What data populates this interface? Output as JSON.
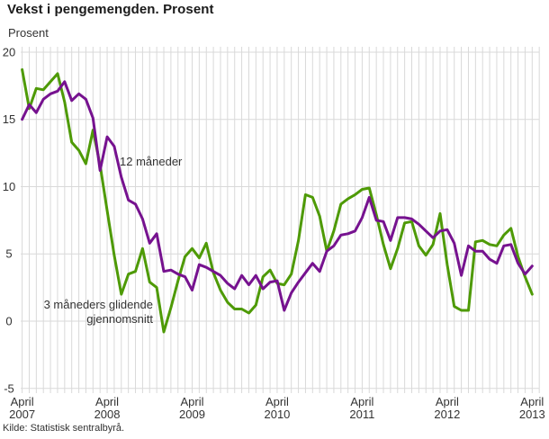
{
  "chart_data": {
    "type": "line",
    "title": "Vekst i pengemengden. Prosent",
    "ylabel": "Prosent",
    "source": "Kilde: Statistisk sentralbyrå.",
    "ylim": [
      -5,
      20
    ],
    "yticks": [
      20,
      15,
      10,
      5,
      0,
      -5
    ],
    "grid": true,
    "grid_color": "#d9d9d9",
    "x_ticks": [
      {
        "index": 0,
        "line1": "April",
        "line2": "2007"
      },
      {
        "index": 12,
        "line1": "April",
        "line2": "2008"
      },
      {
        "index": 24,
        "line1": "April",
        "line2": "2009"
      },
      {
        "index": 36,
        "line1": "April",
        "line2": "2010"
      },
      {
        "index": 48,
        "line1": "April",
        "line2": "2011"
      },
      {
        "index": 60,
        "line1": "April",
        "line2": "2012"
      },
      {
        "index": 72,
        "line1": "April",
        "line2": "2013"
      }
    ],
    "x": [
      "2007-04",
      "2007-05",
      "2007-06",
      "2007-07",
      "2007-08",
      "2007-09",
      "2007-10",
      "2007-11",
      "2007-12",
      "2008-01",
      "2008-02",
      "2008-03",
      "2008-04",
      "2008-05",
      "2008-06",
      "2008-07",
      "2008-08",
      "2008-09",
      "2008-10",
      "2008-11",
      "2008-12",
      "2009-01",
      "2009-02",
      "2009-03",
      "2009-04",
      "2009-05",
      "2009-06",
      "2009-07",
      "2009-08",
      "2009-09",
      "2009-10",
      "2009-11",
      "2009-12",
      "2010-01",
      "2010-02",
      "2010-03",
      "2010-04",
      "2010-05",
      "2010-06",
      "2010-07",
      "2010-08",
      "2010-09",
      "2010-10",
      "2010-11",
      "2010-12",
      "2011-01",
      "2011-02",
      "2011-03",
      "2011-04",
      "2011-05",
      "2011-06",
      "2011-07",
      "2011-08",
      "2011-09",
      "2011-10",
      "2011-11",
      "2011-12",
      "2012-01",
      "2012-02",
      "2012-03",
      "2012-04",
      "2012-05",
      "2012-06",
      "2012-07",
      "2012-08",
      "2012-09",
      "2012-10",
      "2012-11",
      "2012-12",
      "2013-01",
      "2013-02",
      "2013-03",
      "2013-04"
    ],
    "series": [
      {
        "name": "3 måneders glidende gjennomsnitt",
        "color": "#4E9A06",
        "values": [
          18.7,
          15.8,
          17.3,
          17.2,
          17.8,
          18.4,
          16.3,
          13.3,
          12.7,
          11.7,
          14.2,
          11.6,
          8.2,
          4.9,
          2.0,
          3.5,
          3.7,
          5.4,
          2.9,
          2.5,
          -0.8,
          1.0,
          3.0,
          4.8,
          5.4,
          4.7,
          5.8,
          3.6,
          2.3,
          1.4,
          0.9,
          0.9,
          0.6,
          1.2,
          3.3,
          3.8,
          2.8,
          2.7,
          3.5,
          6.0,
          9.4,
          9.2,
          7.8,
          5.2,
          6.7,
          8.7,
          9.1,
          9.4,
          9.8,
          9.9,
          7.9,
          5.7,
          3.9,
          5.4,
          7.3,
          7.4,
          5.6,
          4.9,
          5.7,
          8.0,
          4.2,
          1.1,
          0.8,
          0.8,
          5.9,
          6.0,
          5.7,
          5.6,
          6.4,
          6.9,
          4.8,
          3.3,
          2.0
        ]
      },
      {
        "name": "12 måneder",
        "color": "#76128F",
        "values": [
          15.0,
          16.1,
          15.5,
          16.5,
          16.9,
          17.1,
          17.8,
          16.4,
          16.9,
          16.5,
          15.1,
          11.2,
          13.7,
          13.0,
          10.7,
          9.0,
          8.7,
          7.6,
          5.8,
          6.5,
          3.7,
          3.8,
          3.5,
          3.3,
          2.3,
          4.2,
          4.0,
          3.7,
          3.4,
          2.8,
          2.4,
          3.4,
          2.7,
          3.4,
          2.4,
          2.9,
          3.0,
          0.8,
          2.1,
          2.9,
          3.6,
          4.3,
          3.7,
          5.2,
          5.6,
          6.4,
          6.5,
          6.7,
          7.7,
          9.2,
          7.5,
          7.4,
          6.0,
          7.7,
          7.7,
          7.6,
          7.2,
          6.7,
          6.2,
          6.7,
          6.8,
          5.8,
          3.4,
          5.6,
          5.2,
          5.2,
          4.6,
          4.3,
          5.6,
          5.7,
          4.3,
          3.5,
          4.1
        ]
      }
    ],
    "series_labels": {
      "s12": "12 måneder",
      "s3_line1": "3 måneders glidende",
      "s3_line2": "gjennomsnitt"
    }
  }
}
